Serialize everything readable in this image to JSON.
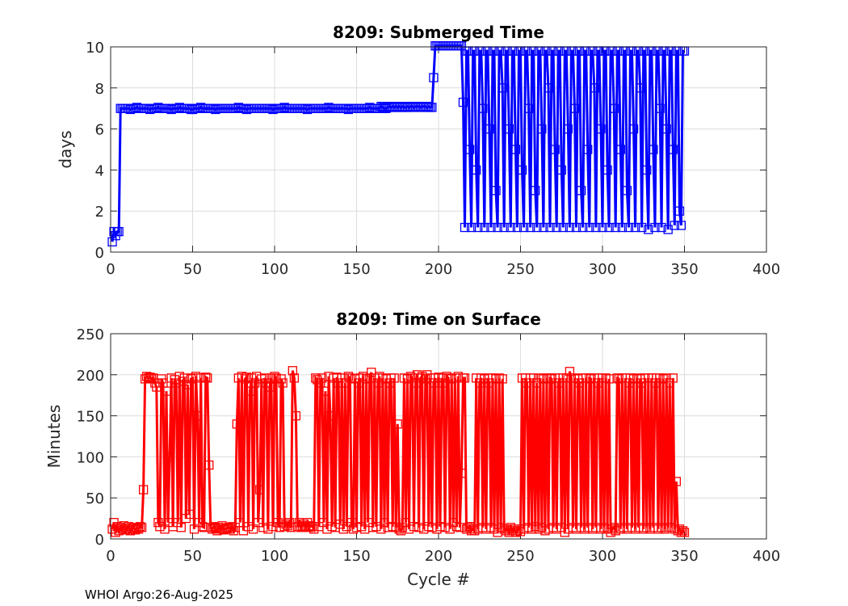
{
  "footer": "WHOI Argo:26-Aug-2025",
  "colors": {
    "submerged": "#0000ff",
    "surface": "#ff0000",
    "grid": "#dcdcdc",
    "axis": "#262626"
  },
  "chart_data": [
    {
      "type": "line",
      "title": "8209: Submerged Time",
      "xlabel": "",
      "ylabel": "days",
      "xlim": [
        0,
        400
      ],
      "ylim": [
        0,
        10
      ],
      "xticks": [
        "0",
        "50",
        "100",
        "150",
        "200",
        "250",
        "300",
        "350",
        "400"
      ],
      "yticks": [
        "0",
        "2",
        "4",
        "6",
        "8",
        "10"
      ],
      "grid": true,
      "marker": "square",
      "x_start": 1,
      "series": [
        {
          "name": "Submerged Time",
          "values": [
            0.5,
            1.0,
            0.8,
            1.0,
            1.0,
            7.0,
            7.0,
            7.0,
            7.0,
            7.0,
            7.0,
            6.95,
            7.0,
            7.0,
            7.0,
            7.05,
            7.0,
            7.0,
            7.0,
            7.0,
            7.0,
            7.0,
            7.0,
            6.95,
            7.0,
            7.0,
            7.0,
            7.0,
            7.05,
            7.0,
            7.0,
            7.0,
            7.0,
            7.0,
            7.0,
            7.0,
            6.95,
            7.0,
            7.0,
            7.0,
            7.0,
            7.05,
            7.0,
            7.0,
            7.0,
            7.0,
            7.0,
            7.0,
            6.95,
            6.95,
            7.0,
            7.0,
            7.0,
            7.0,
            7.05,
            7.0,
            7.0,
            7.0,
            7.0,
            7.0,
            7.0,
            7.0,
            7.0,
            6.95,
            7.0,
            7.0,
            7.0,
            7.0,
            7.0,
            7.0,
            7.0,
            7.0,
            7.0,
            7.0,
            7.0,
            7.0,
            7.0,
            7.05,
            7.0,
            7.0,
            7.0,
            7.0,
            6.95,
            7.0,
            7.0,
            7.0,
            7.0,
            7.0,
            7.0,
            7.0,
            7.0,
            7.0,
            7.0,
            7.0,
            7.0,
            7.0,
            7.0,
            7.0,
            6.95,
            7.0,
            7.0,
            7.0,
            7.0,
            7.0,
            7.0,
            7.05,
            7.0,
            7.0,
            7.0,
            7.0,
            7.0,
            7.0,
            7.0,
            7.0,
            7.0,
            7.0,
            7.0,
            7.0,
            7.0,
            6.95,
            7.0,
            7.0,
            7.0,
            7.0,
            7.0,
            7.0,
            7.0,
            7.0,
            7.0,
            7.0,
            7.0,
            7.0,
            7.05,
            7.0,
            7.0,
            7.0,
            7.0,
            7.0,
            7.0,
            7.0,
            7.0,
            7.0,
            7.0,
            7.0,
            6.95,
            7.0,
            7.0,
            7.0,
            7.0,
            7.0,
            7.0,
            7.0,
            7.0,
            7.0,
            7.0,
            7.0,
            7.0,
            7.05,
            7.0,
            7.0,
            7.0,
            7.0,
            7.0,
            7.0,
            7.1,
            7.05,
            7.0,
            7.0,
            7.05,
            7.1,
            7.05,
            7.1,
            7.05,
            7.1,
            7.05,
            7.1,
            7.05,
            7.1,
            7.05,
            7.05,
            7.1,
            7.05,
            7.1,
            7.1,
            7.05,
            7.1,
            7.1,
            7.1,
            7.05,
            7.1,
            7.1,
            7.1,
            7.05,
            7.1,
            7.05,
            7.05,
            8.5,
            10.05,
            10.05,
            10.05,
            10.05,
            10.05,
            10.05,
            10.05,
            10.05,
            10.05,
            10.05,
            10.05,
            10.05,
            10.05,
            10.05,
            10.05,
            10.05,
            10.05,
            7.3,
            1.2,
            9.8,
            9.8,
            5,
            1.2,
            9.8,
            9.8,
            4,
            1.2,
            9.8,
            9.8,
            7,
            1.2,
            9.8,
            9.8,
            6,
            1.2,
            9.8,
            9.8,
            3,
            1.2,
            9.8,
            9.8,
            8,
            1.2,
            9.8,
            9.8,
            6,
            1.2,
            9.8,
            9.8,
            5,
            1.2,
            9.8,
            9.8,
            4,
            1.2,
            9.8,
            9.8,
            7,
            1.2,
            9.8,
            9.8,
            3,
            1.2,
            9.8,
            9.8,
            6,
            1.2,
            9.8,
            9.8,
            8,
            1.2,
            9.8,
            9.8,
            5,
            1.2,
            9.8,
            9.8,
            4,
            1.2,
            9.8,
            9.8,
            6,
            1.2,
            9.8,
            9.8,
            7,
            1.2,
            9.8,
            9.8,
            3,
            1.2,
            9.8,
            9.8,
            5,
            1.2,
            9.8,
            9.8,
            8,
            1.2,
            9.8,
            9.8,
            6,
            1.2,
            9.8,
            9.8,
            4,
            1.2,
            9.8,
            9.8,
            7,
            1.2,
            9.8,
            9.8,
            5,
            1.2,
            9.8,
            9.8,
            3,
            1.2,
            9.8,
            9.8,
            6,
            1.2,
            9.8,
            9.8,
            8,
            1.2,
            9.8,
            9.8,
            4,
            1.1,
            9.8,
            9.8,
            5,
            1.2,
            9.8,
            9.8,
            7,
            1.2,
            9.8,
            9.8,
            6,
            1.1,
            9.8,
            9.8,
            5,
            1.3,
            9.8,
            9.8,
            2,
            1.3,
            9.8,
            9.8
          ]
        }
      ]
    },
    {
      "type": "line",
      "title": "8209: Time on Surface",
      "xlabel": "Cycle #",
      "ylabel": "Minutes",
      "xlim": [
        0,
        400
      ],
      "ylim": [
        0,
        250
      ],
      "xticks": [
        "0",
        "50",
        "100",
        "150",
        "200",
        "250",
        "300",
        "350",
        "400"
      ],
      "yticks": [
        "0",
        "50",
        "100",
        "150",
        "200",
        "250"
      ],
      "grid": true,
      "marker": "square",
      "x_start": 1,
      "series": [
        {
          "name": "Time on Surface",
          "values": [
            12,
            20,
            8,
            15,
            10,
            14,
            12,
            16,
            11,
            13,
            15,
            10,
            12,
            14,
            11,
            13,
            12,
            15,
            14,
            60,
            195,
            198,
            196,
            197,
            195,
            196,
            190,
            185,
            20,
            15,
            195,
            190,
            12,
            180,
            20,
            100,
            196,
            15,
            194,
            190,
            20,
            198,
            14,
            192,
            196,
            25,
            188,
            30,
            195,
            196,
            12,
            198,
            150,
            20,
            196,
            15,
            14,
            197,
            196,
            90,
            14,
            12,
            15,
            13,
            10,
            14,
            12,
            16,
            11,
            12,
            13,
            14,
            12,
            15,
            10,
            14,
            140,
            196,
            20,
            198,
            10,
            195,
            197,
            15,
            180,
            196,
            12,
            190,
            198,
            20,
            60,
            195,
            14,
            196,
            190,
            12,
            185,
            196,
            15,
            198,
            196,
            20,
            14,
            195,
            190,
            15,
            18,
            16,
            20,
            14,
            205,
            196,
            150,
            15,
            20,
            14,
            16,
            18,
            15,
            20,
            14,
            16,
            15,
            12,
            196,
            194,
            15,
            190,
            196,
            20,
            180,
            12,
            198,
            150,
            15,
            196,
            14,
            197,
            190,
            18,
            196,
            12,
            190,
            15,
            198,
            196,
            20,
            12,
            195,
            14,
            190,
            196,
            15,
            198,
            12,
            195,
            20,
            196,
            203,
            14,
            196,
            15,
            190,
            198,
            12,
            196,
            20,
            195,
            14,
            190,
            196,
            15,
            196,
            14,
            140,
            12,
            10,
            14,
            196,
            20,
            195,
            12,
            198,
            196,
            15,
            190,
            200,
            14,
            196,
            198,
            12,
            195,
            200,
            15,
            196,
            14,
            190,
            196,
            12,
            197,
            15,
            196,
            190,
            14,
            198,
            196,
            12,
            195,
            20,
            196,
            15,
            198,
            14,
            80,
            196,
            196,
            12,
            14,
            15,
            10,
            12,
            10,
            196,
            12,
            190,
            196,
            14,
            195,
            12,
            196,
            190,
            14,
            196,
            12,
            195,
            8,
            196,
            14,
            195,
            12,
            10,
            12,
            8,
            14,
            10,
            12,
            8,
            10,
            12,
            9,
            196,
            12,
            196,
            190,
            14,
            196,
            12,
            196,
            15,
            190,
            12,
            196,
            14,
            195,
            10,
            196,
            12,
            196,
            195,
            14,
            196,
            12,
            190,
            196,
            14,
            196,
            8,
            196,
            12,
            204,
            196,
            14,
            196,
            12,
            195,
            190,
            14,
            196,
            12,
            196,
            14,
            196,
            195,
            12,
            196,
            14,
            190,
            196,
            12,
            196,
            14,
            196,
            12,
            195,
            8,
            12,
            14,
            10,
            196,
            195,
            12,
            196,
            14,
            196,
            12,
            190,
            196,
            14,
            195,
            12,
            196,
            14,
            195,
            190,
            12,
            196,
            14,
            196,
            12,
            196,
            14,
            190,
            196,
            12,
            196,
            14,
            195,
            12,
            196,
            14,
            190,
            14,
            196,
            12,
            70,
            10,
            12,
            8,
            10,
            8
          ]
        }
      ]
    }
  ]
}
